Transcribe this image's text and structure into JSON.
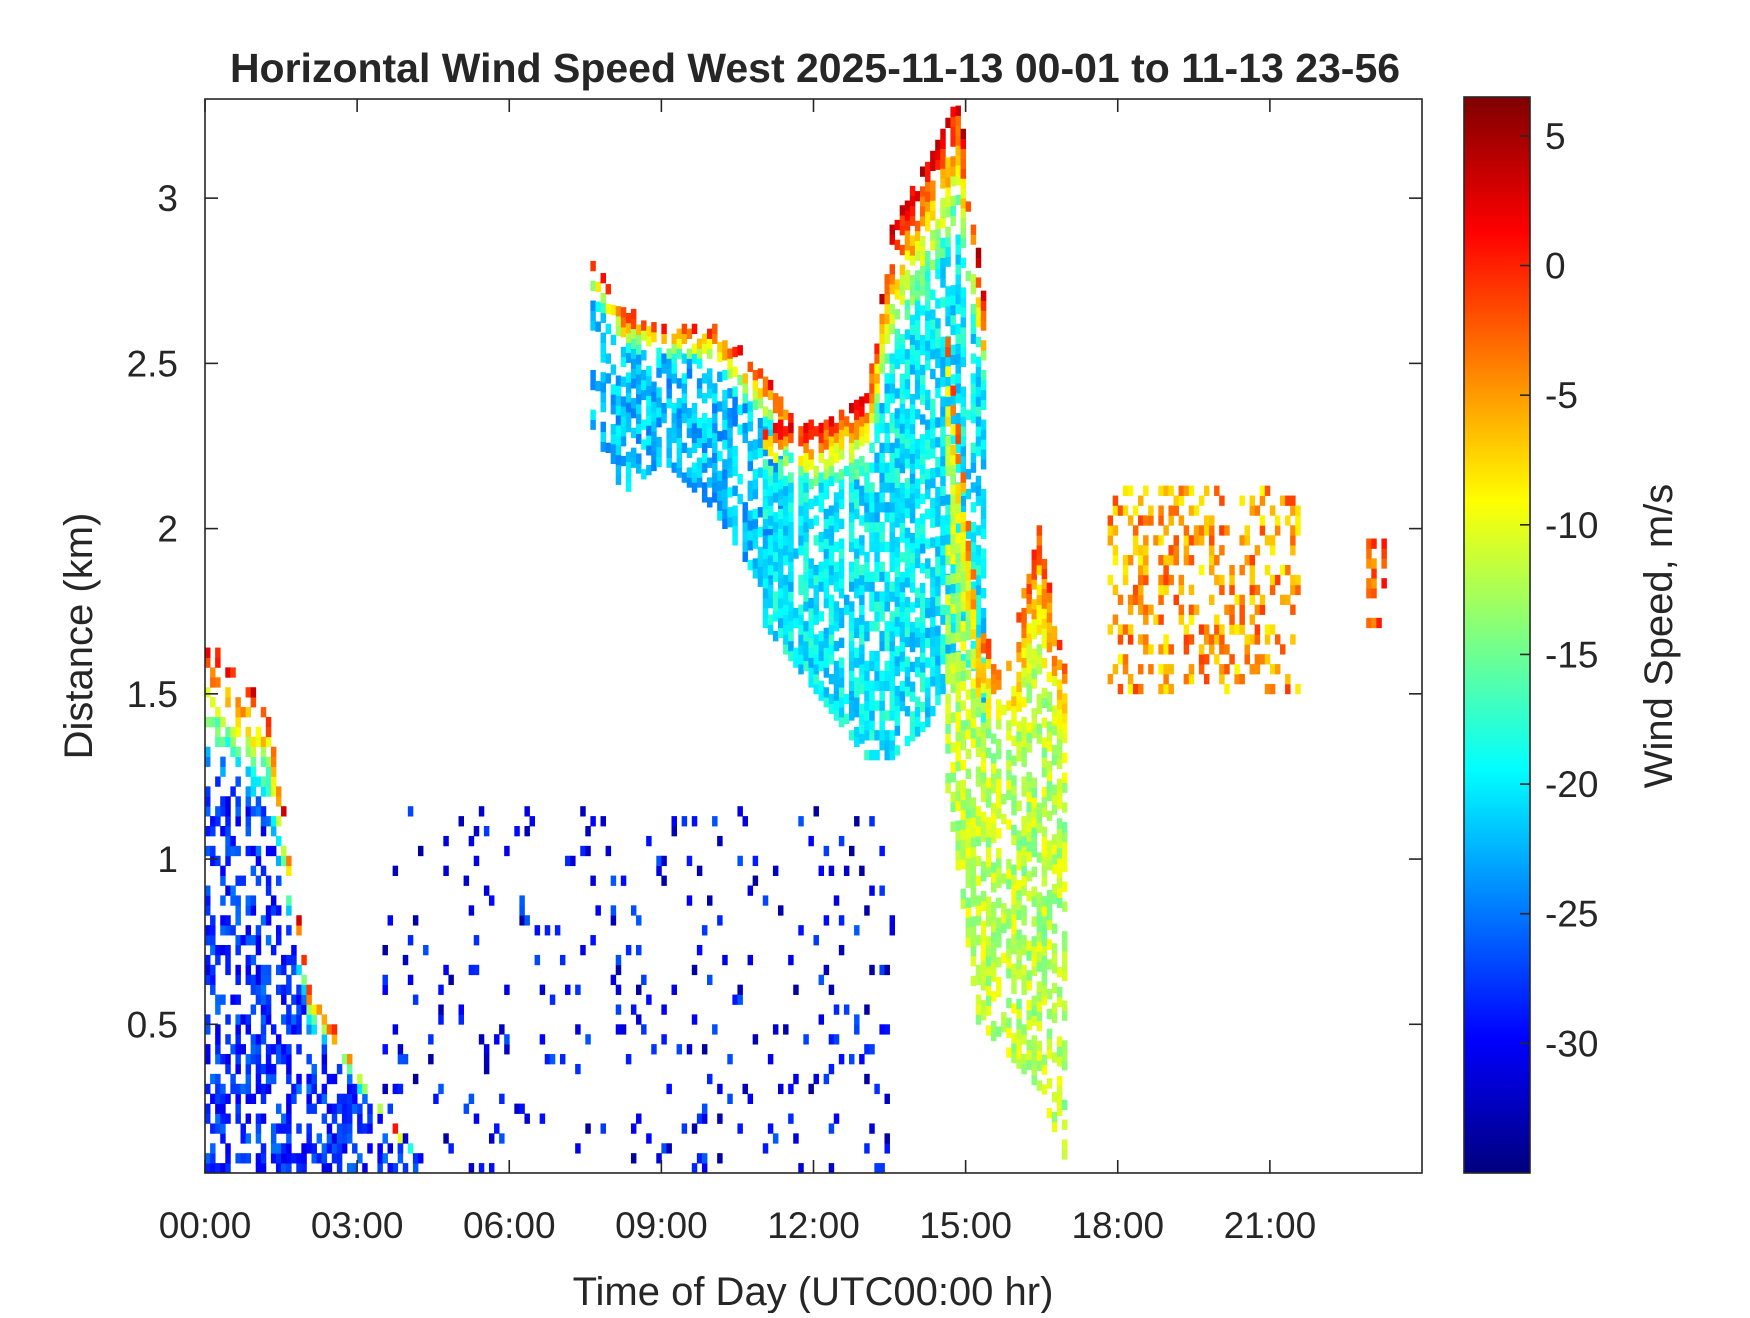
{
  "chart_data": {
    "type": "heatmap",
    "title": "Horizontal Wind Speed West 2025-11-13 00-01 to 11-13 23-56",
    "xlabel": "Time of Day (UTC00:00 hr)",
    "ylabel": "Distance (km)",
    "colorbar_label": "Wind Speed, m/s",
    "xlim": [
      0,
      24
    ],
    "ylim": [
      0.05,
      3.3
    ],
    "clim": [
      -35,
      6.5
    ],
    "colormap": "jet",
    "x_ticks": [
      0,
      3,
      6,
      9,
      12,
      15,
      18,
      21
    ],
    "x_tick_labels": [
      "00:00",
      "03:00",
      "06:00",
      "09:00",
      "12:00",
      "15:00",
      "18:00",
      "21:00"
    ],
    "y_ticks": [
      0.5,
      1,
      1.5,
      2,
      2.5,
      3
    ],
    "y_tick_labels": [
      "0.5",
      "1",
      "1.5",
      "2",
      "2.5",
      "3"
    ],
    "colorbar_ticks": [
      5,
      0,
      -5,
      -10,
      -15,
      -20,
      -25,
      -30
    ],
    "colorbar_tick_labels": [
      "5",
      "0",
      "-5",
      "-10",
      "-15",
      "-20",
      "-25",
      "-30"
    ],
    "background": "#ffffff",
    "features": [
      {
        "kind": "band",
        "comment": "early morning descending layer",
        "t": [
          0,
          0.6,
          1.2,
          2.0,
          2.6,
          3.2,
          3.8,
          4.5
        ],
        "top": [
          1.65,
          1.55,
          1.45,
          0.6,
          0.45,
          0.3,
          0.15,
          0.05
        ],
        "bottom": [
          0.05,
          0.05,
          0.05,
          0.05,
          0.05,
          0.05,
          0.05,
          0.05
        ],
        "top_value": 3,
        "low_value": -28,
        "density": 0.55
      },
      {
        "kind": "band",
        "comment": "morning elevated layer",
        "t": [
          7.6,
          8.2,
          9.0,
          10.0,
          11.0,
          11.5
        ],
        "top": [
          2.8,
          2.65,
          2.6,
          2.6,
          2.45,
          2.35
        ],
        "bottom": [
          2.3,
          2.1,
          2.2,
          2.05,
          1.8,
          1.6
        ],
        "top_value": 2,
        "low_value": -22,
        "density": 0.7
      },
      {
        "kind": "band",
        "comment": "midday rising plume",
        "t": [
          11.0,
          12.0,
          13.0,
          13.5,
          14.2,
          14.8,
          15.3
        ],
        "top": [
          2.3,
          2.3,
          2.4,
          2.9,
          3.1,
          3.3,
          2.7
        ],
        "bottom": [
          1.7,
          1.5,
          1.3,
          1.3,
          1.4,
          1.6,
          1.4
        ],
        "top_value": 3,
        "low_value": -20,
        "density": 0.75
      },
      {
        "kind": "band",
        "comment": "afternoon descending column",
        "t": [
          14.6,
          15.2,
          15.8,
          16.4,
          17.0
        ],
        "top": [
          2.6,
          1.7,
          1.6,
          2.0,
          1.5
        ],
        "bottom": [
          1.2,
          0.5,
          0.4,
          0.3,
          0.05
        ],
        "top_value": -2,
        "low_value": -12,
        "density": 0.7
      },
      {
        "kind": "scatter",
        "comment": "boundary layer noise",
        "t_range": [
          3.5,
          13.5
        ],
        "z_range": [
          0.05,
          1.15
        ],
        "value": -30,
        "density": 0.08
      },
      {
        "kind": "scatter",
        "comment": "evening patches",
        "t_range": [
          17.8,
          21.6
        ],
        "z_range": [
          1.5,
          2.1
        ],
        "value": -5,
        "density": 0.35
      },
      {
        "kind": "scatter",
        "comment": "late evening patch",
        "t_range": [
          22.9,
          23.3
        ],
        "z_range": [
          1.7,
          1.95
        ],
        "value": -2,
        "density": 0.55
      }
    ]
  }
}
